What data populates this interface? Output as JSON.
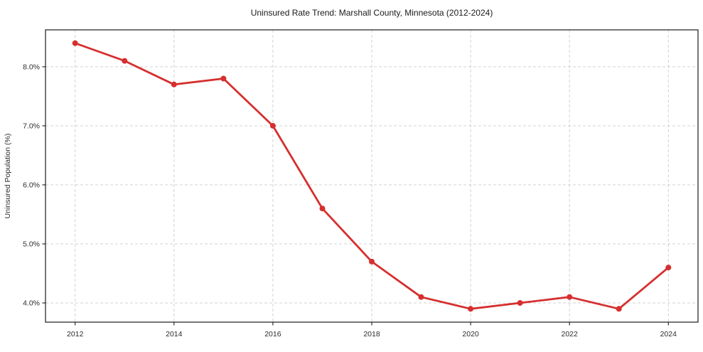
{
  "chart_data": {
    "type": "line",
    "title": "Uninsured Rate Trend: Marshall County, Minnesota (2012-2024)",
    "xlabel": "",
    "ylabel": "Uninsured Population (%)",
    "x": [
      2012,
      2013,
      2014,
      2015,
      2016,
      2017,
      2018,
      2019,
      2020,
      2021,
      2022,
      2023,
      2024
    ],
    "series": [
      {
        "name": "Uninsured Rate",
        "color": "#d62f2f",
        "values": [
          8.4,
          8.1,
          7.7,
          7.8,
          7.0,
          5.6,
          4.7,
          4.1,
          3.9,
          4.0,
          4.1,
          3.9,
          4.6
        ]
      }
    ],
    "xticks": [
      2012,
      2014,
      2016,
      2018,
      2020,
      2022,
      2024
    ],
    "xtick_labels": [
      "2012",
      "2014",
      "2016",
      "2018",
      "2020",
      "2022",
      "2024"
    ],
    "yticks": [
      4.0,
      5.0,
      6.0,
      7.0,
      8.0
    ],
    "ytick_labels": [
      "4.0%",
      "5.0%",
      "6.0%",
      "7.0%",
      "8.0%"
    ],
    "xlim": [
      2011.4,
      2024.6
    ],
    "ylim": [
      3.675,
      8.625
    ],
    "grid": true,
    "grid_color": "#cccccc",
    "grid_style": "dashed",
    "legend_position": "none",
    "marker": "circle",
    "marker_radius": 4,
    "line_width": 2.8,
    "frame_color": "#1a1a1a",
    "background": "#ffffff"
  }
}
